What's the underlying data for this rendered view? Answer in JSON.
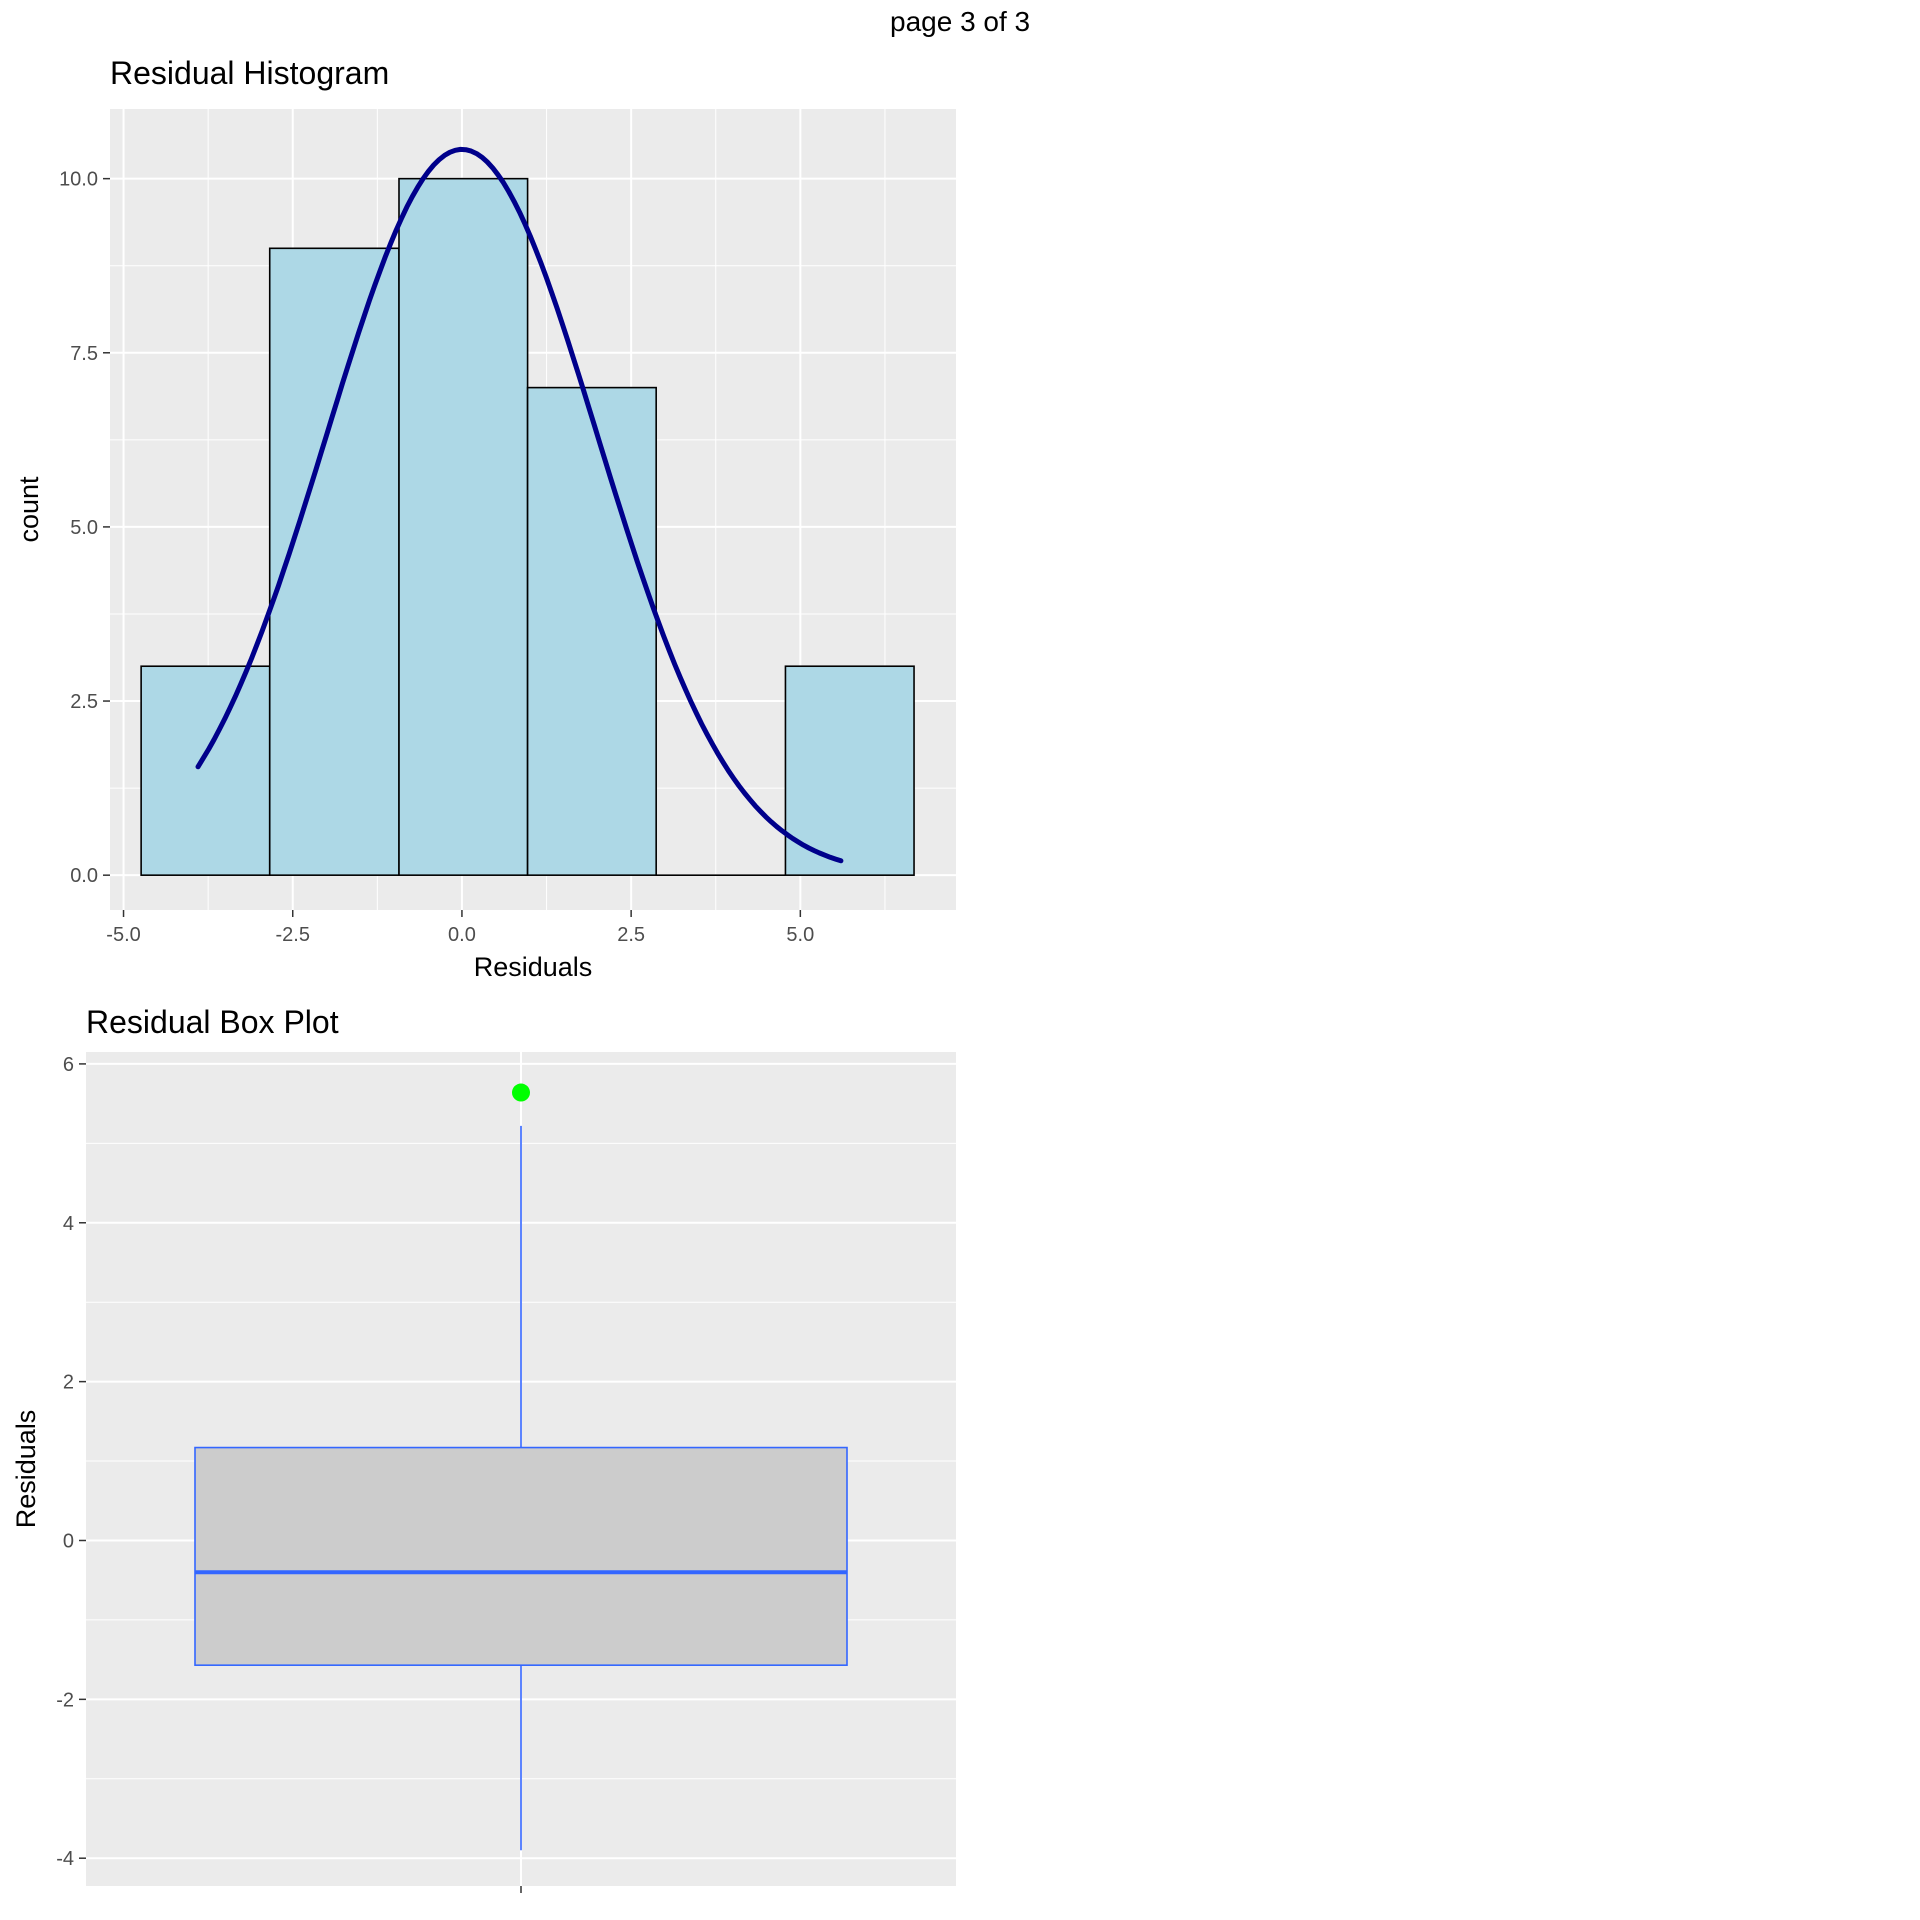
{
  "page": {
    "label": "page 3 of 3"
  },
  "chart_data": [
    {
      "type": "bar",
      "title": "Residual Histogram",
      "xlabel": "Residuals",
      "ylabel": "count",
      "xlim": [
        -5.2,
        7.3
      ],
      "ylim": [
        -0.5,
        11.0
      ],
      "xticks": [
        -5.0,
        -2.5,
        0.0,
        2.5,
        5.0
      ],
      "xtick_labels": [
        "-5.0",
        "-2.5",
        "0.0",
        "2.5",
        "5.0"
      ],
      "yticks": [
        0.0,
        2.5,
        5.0,
        7.5,
        10.0
      ],
      "ytick_labels": [
        "0.0",
        "2.5",
        "5.0",
        "7.5",
        "10.0"
      ],
      "bins": [
        {
          "x0": -4.74,
          "x1": -2.84,
          "count": 3
        },
        {
          "x0": -2.84,
          "x1": -0.93,
          "count": 9
        },
        {
          "x0": -0.93,
          "x1": 0.97,
          "count": 10
        },
        {
          "x0": 0.97,
          "x1": 2.87,
          "count": 7
        },
        {
          "x0": 2.87,
          "x1": 4.78,
          "count": 0
        },
        {
          "x0": 4.78,
          "x1": 6.68,
          "count": 3
        }
      ],
      "density_curve": {
        "mean": 0.0,
        "sd": 2.0,
        "peak_count": 10.42,
        "x_from": -3.9,
        "x_to": 5.6
      },
      "colors": {
        "panel": "#ebebeb",
        "grid": "#ffffff",
        "bar_fill": "#add8e6",
        "bar_stroke": "#000000",
        "curve": "#00008b"
      },
      "grid": true
    },
    {
      "type": "boxplot",
      "title": "Residual Box Plot",
      "xlabel": "",
      "ylabel": "Residuals",
      "ylim": [
        -4.35,
        6.15
      ],
      "yticks": [
        -4,
        -2,
        0,
        2,
        4,
        6
      ],
      "ytick_labels": [
        "-4",
        "-2",
        "0",
        "2",
        "4",
        "6"
      ],
      "box": {
        "min": -3.9,
        "q1": -1.57,
        "median": -0.4,
        "q3": 1.17,
        "max": 5.22
      },
      "outliers": [
        5.64
      ],
      "colors": {
        "panel": "#ebebeb",
        "grid": "#ffffff",
        "box_fill": "#cccccc",
        "box_stroke": "#3366ff",
        "outlier": "#00ff00"
      },
      "grid": true
    }
  ]
}
